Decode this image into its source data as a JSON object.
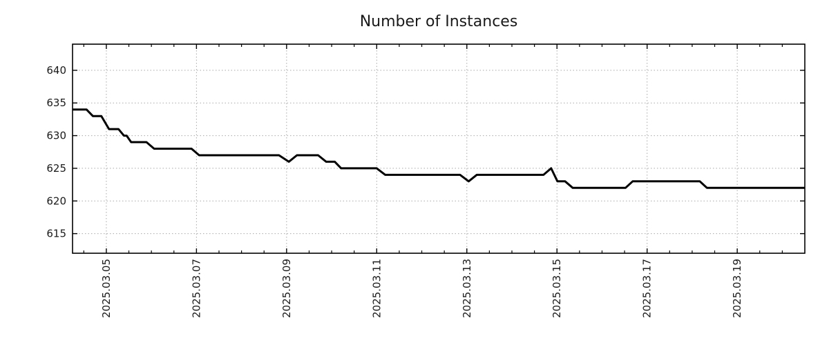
{
  "chart_data": {
    "type": "line",
    "title": "Number of Instances",
    "xlabel": "",
    "ylabel": "",
    "legend": "none",
    "grid": "dotted gridlines at major ticks on both axes, mirrored inside tick marks on all four borders",
    "x_unit": "t = days since 2025-03-04 00:00; axis labels are dates",
    "x_range": [
      0.25,
      16.5
    ],
    "y_range": [
      612,
      644
    ],
    "y_ticks": [
      615,
      620,
      625,
      630,
      635,
      640
    ],
    "x_major_ticks": [
      {
        "t": 1,
        "label": "2025.03.05"
      },
      {
        "t": 3,
        "label": "2025.03.07"
      },
      {
        "t": 5,
        "label": "2025.03.09"
      },
      {
        "t": 7,
        "label": "2025.03.11"
      },
      {
        "t": 9,
        "label": "2025.03.13"
      },
      {
        "t": 11,
        "label": "2025.03.15"
      },
      {
        "t": 13,
        "label": "2025.03.17"
      },
      {
        "t": 15,
        "label": "2025.03.19"
      }
    ],
    "x_minor_tick_step": 0.5,
    "series": [
      {
        "name": "Number of Instances",
        "color": "#000000",
        "line_width": 3,
        "points": [
          [
            0.25,
            634,
            "2025-03-04 06:00"
          ],
          [
            0.56,
            634,
            "2025-03-04 13:30"
          ],
          [
            0.7,
            633,
            "2025-03-04 16:45"
          ],
          [
            0.89,
            633,
            "2025-03-04 21:15"
          ],
          [
            1.06,
            631,
            "2025-03-05 01:30"
          ],
          [
            1.27,
            631,
            "2025-03-05 06:30"
          ],
          [
            1.39,
            630,
            "2025-03-05 09:30"
          ],
          [
            1.45,
            630,
            "2025-03-05 10:45"
          ],
          [
            1.55,
            629,
            "2025-03-05 13:15"
          ],
          [
            1.89,
            629,
            "2025-03-05 21:15"
          ],
          [
            2.06,
            628,
            "2025-03-06 01:30"
          ],
          [
            2.89,
            628,
            "2025-03-06 21:15"
          ],
          [
            3.06,
            627,
            "2025-03-07 01:30"
          ],
          [
            4.83,
            627,
            "2025-03-08 20:00"
          ],
          [
            5.05,
            626,
            "2025-03-09 01:15"
          ],
          [
            5.23,
            627,
            "2025-03-09 05:30"
          ],
          [
            5.7,
            627,
            "2025-03-09 16:45"
          ],
          [
            5.88,
            626,
            "2025-03-09 21:00"
          ],
          [
            6.07,
            626,
            "2025-03-10 01:45"
          ],
          [
            6.21,
            625,
            "2025-03-10 05:00"
          ],
          [
            7.0,
            625,
            "2025-03-11 00:00"
          ],
          [
            7.19,
            624,
            "2025-03-11 04:30"
          ],
          [
            8.85,
            624,
            "2025-03-12 20:30"
          ],
          [
            9.04,
            623,
            "2025-03-13 01:00"
          ],
          [
            9.22,
            624,
            "2025-03-13 05:15"
          ],
          [
            10.7,
            624,
            "2025-03-14 16:45"
          ],
          [
            10.87,
            625,
            "2025-03-14 20:45"
          ],
          [
            11.01,
            623,
            "2025-03-15 00:15"
          ],
          [
            11.18,
            623,
            "2025-03-15 04:15"
          ],
          [
            11.35,
            622,
            "2025-03-15 08:30"
          ],
          [
            12.52,
            622,
            "2025-03-16 12:30"
          ],
          [
            12.68,
            623,
            "2025-03-16 16:15"
          ],
          [
            14.17,
            623,
            "2025-03-18 04:00"
          ],
          [
            14.33,
            622,
            "2025-03-18 08:00"
          ],
          [
            16.5,
            622,
            "2025-03-20 12:00"
          ]
        ]
      }
    ]
  },
  "style": {
    "background": "#ffffff",
    "line_color": "#000000",
    "grid_color": "#a8a8a8",
    "axis_color": "#000000",
    "text_color": "#1a1a1a"
  }
}
